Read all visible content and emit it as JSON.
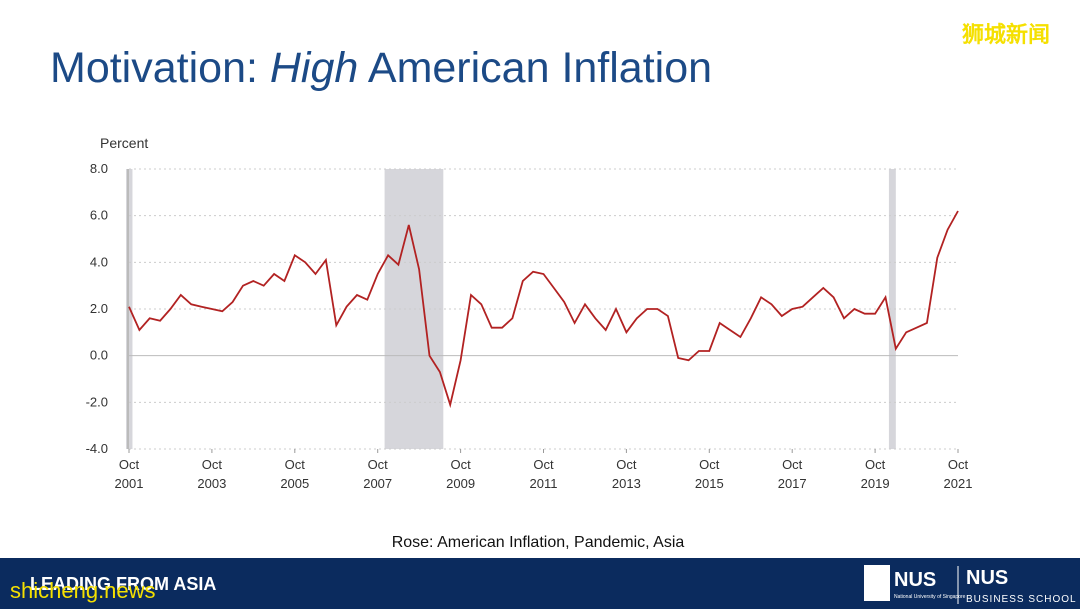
{
  "title_parts": [
    "Motivation: ",
    "High",
    " American Inflation"
  ],
  "chart_data": {
    "type": "line",
    "y_label": "Percent",
    "x": [
      "2001-10",
      "2002-01",
      "2002-04",
      "2002-07",
      "2002-10",
      "2003-01",
      "2003-04",
      "2003-07",
      "2003-10",
      "2004-01",
      "2004-04",
      "2004-07",
      "2004-10",
      "2005-01",
      "2005-04",
      "2005-07",
      "2005-10",
      "2006-01",
      "2006-04",
      "2006-07",
      "2006-10",
      "2007-01",
      "2007-04",
      "2007-07",
      "2007-10",
      "2008-01",
      "2008-04",
      "2008-07",
      "2008-10",
      "2009-01",
      "2009-04",
      "2009-07",
      "2009-10",
      "2010-01",
      "2010-04",
      "2010-07",
      "2010-10",
      "2011-01",
      "2011-04",
      "2011-07",
      "2011-10",
      "2012-01",
      "2012-04",
      "2012-07",
      "2012-10",
      "2013-01",
      "2013-04",
      "2013-07",
      "2013-10",
      "2014-01",
      "2014-04",
      "2014-07",
      "2014-10",
      "2015-01",
      "2015-04",
      "2015-07",
      "2015-10",
      "2016-01",
      "2016-04",
      "2016-07",
      "2016-10",
      "2017-01",
      "2017-04",
      "2017-07",
      "2017-10",
      "2018-01",
      "2018-04",
      "2018-07",
      "2018-10",
      "2019-01",
      "2019-04",
      "2019-07",
      "2019-10",
      "2020-01",
      "2020-04",
      "2020-07",
      "2020-10",
      "2021-01",
      "2021-04",
      "2021-07",
      "2021-10"
    ],
    "series": [
      {
        "color": "#b22222",
        "values": [
          2.1,
          1.1,
          1.6,
          1.5,
          2.0,
          2.6,
          2.2,
          2.1,
          2.0,
          1.9,
          2.3,
          3.0,
          3.2,
          3.0,
          3.5,
          3.2,
          4.3,
          4.0,
          3.5,
          4.1,
          1.3,
          2.1,
          2.6,
          2.4,
          3.5,
          4.3,
          3.9,
          5.6,
          3.7,
          0.0,
          -0.7,
          -2.1,
          -0.2,
          2.6,
          2.2,
          1.2,
          1.2,
          1.6,
          3.2,
          3.6,
          3.5,
          2.9,
          2.3,
          1.4,
          2.2,
          1.6,
          1.1,
          2.0,
          1.0,
          1.6,
          2.0,
          2.0,
          1.7,
          -0.1,
          -0.2,
          0.2,
          0.2,
          1.4,
          1.1,
          0.8,
          1.6,
          2.5,
          2.2,
          1.7,
          2.0,
          2.1,
          2.5,
          2.9,
          2.5,
          1.6,
          2.0,
          1.8,
          1.8,
          2.5,
          0.3,
          1.0,
          1.2,
          1.4,
          4.2,
          5.4,
          6.2
        ]
      }
    ],
    "recessions": [
      [
        "2001-03",
        "2001-11"
      ],
      [
        "2007-12",
        "2009-05"
      ],
      [
        "2020-02",
        "2020-04"
      ]
    ],
    "xlim": [
      "2001-10",
      "2021-10"
    ],
    "xticks": [
      {
        "value": "2001-10",
        "label": "Oct 2001"
      },
      {
        "value": "2003-10",
        "label": "Oct 2003"
      },
      {
        "value": "2005-10",
        "label": "Oct 2005"
      },
      {
        "value": "2007-10",
        "label": "Oct 2007"
      },
      {
        "value": "2009-10",
        "label": "Oct 2009"
      },
      {
        "value": "2011-10",
        "label": "Oct 2011"
      },
      {
        "value": "2013-10",
        "label": "Oct 2013"
      },
      {
        "value": "2015-10",
        "label": "Oct 2015"
      },
      {
        "value": "2017-10",
        "label": "Oct 2017"
      },
      {
        "value": "2019-10",
        "label": "Oct 2019"
      },
      {
        "value": "2021-10",
        "label": "Oct 2021"
      }
    ],
    "ylim": [
      -4,
      8
    ],
    "yticks": [
      {
        "value": 8,
        "label": "8.0"
      },
      {
        "value": 6,
        "label": "6.0"
      },
      {
        "value": 4,
        "label": "4.0"
      },
      {
        "value": 2,
        "label": "2.0"
      },
      {
        "value": 0,
        "label": "0.0"
      },
      {
        "value": -2,
        "label": "-2.0"
      },
      {
        "value": -4,
        "label": "-4.0"
      }
    ],
    "grid": true
  },
  "caption": "Rose: American Inflation, Pandemic, Asia",
  "footer": {
    "tagline": "LEADING FROM ASIA",
    "logo": "NUS",
    "logo_sub": "National University of Singapore",
    "school": "NUS",
    "school_sub": "BUSINESS SCHOOL"
  },
  "watermarks": [
    "狮城新闻",
    "shicheng.news"
  ]
}
